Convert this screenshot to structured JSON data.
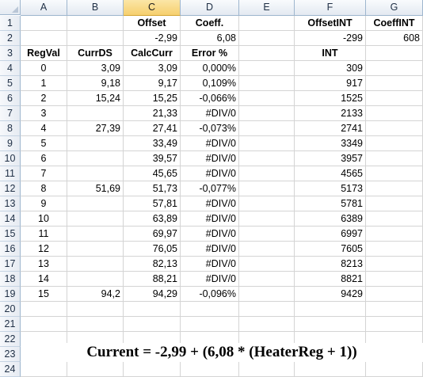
{
  "columns": [
    "A",
    "B",
    "C",
    "D",
    "E",
    "F",
    "G"
  ],
  "selected_column": "C",
  "row_numbers": [
    "1",
    "2",
    "3",
    "4",
    "5",
    "6",
    "7",
    "8",
    "9",
    "10",
    "11",
    "12",
    "13",
    "14",
    "15",
    "16",
    "17",
    "18",
    "19",
    "20",
    "21",
    "22",
    "23",
    "24"
  ],
  "header_rows": {
    "row1": {
      "C": "Offset",
      "D": "Coeff.",
      "F": "OffsetINT",
      "G": "CoeffINT"
    },
    "row2": {
      "C": "-2,99",
      "D": "6,08",
      "F": "-299",
      "G": "608"
    },
    "row3": {
      "A": "RegVal",
      "B": "CurrDS",
      "C": "CalcCurr",
      "D": "Error %",
      "F": "INT"
    }
  },
  "data_rows": [
    {
      "A": "0",
      "B": "3,09",
      "C": "3,09",
      "D": "0,000%",
      "F": "309"
    },
    {
      "A": "1",
      "B": "9,18",
      "C": "9,17",
      "D": "0,109%",
      "F": "917"
    },
    {
      "A": "2",
      "B": "15,24",
      "C": "15,25",
      "D": "-0,066%",
      "F": "1525"
    },
    {
      "A": "3",
      "B": "",
      "C": "21,33",
      "D": "#DIV/0",
      "F": "2133"
    },
    {
      "A": "4",
      "B": "27,39",
      "C": "27,41",
      "D": "-0,073%",
      "F": "2741"
    },
    {
      "A": "5",
      "B": "",
      "C": "33,49",
      "D": "#DIV/0",
      "F": "3349"
    },
    {
      "A": "6",
      "B": "",
      "C": "39,57",
      "D": "#DIV/0",
      "F": "3957"
    },
    {
      "A": "7",
      "B": "",
      "C": "45,65",
      "D": "#DIV/0",
      "F": "4565"
    },
    {
      "A": "8",
      "B": "51,69",
      "C": "51,73",
      "D": "-0,077%",
      "F": "5173"
    },
    {
      "A": "9",
      "B": "",
      "C": "57,81",
      "D": "#DIV/0",
      "F": "5781"
    },
    {
      "A": "10",
      "B": "",
      "C": "63,89",
      "D": "#DIV/0",
      "F": "6389"
    },
    {
      "A": "11",
      "B": "",
      "C": "69,97",
      "D": "#DIV/0",
      "F": "6997"
    },
    {
      "A": "12",
      "B": "",
      "C": "76,05",
      "D": "#DIV/0",
      "F": "7605"
    },
    {
      "A": "13",
      "B": "",
      "C": "82,13",
      "D": "#DIV/0",
      "F": "8213"
    },
    {
      "A": "14",
      "B": "",
      "C": "88,21",
      "D": "#DIV/0",
      "F": "8821"
    },
    {
      "A": "15",
      "B": "94,2",
      "C": "94,29",
      "D": "-0,096%",
      "F": "9429"
    }
  ],
  "formula": "Current = -2,99 + (6,08 * (HeaterReg + 1))"
}
